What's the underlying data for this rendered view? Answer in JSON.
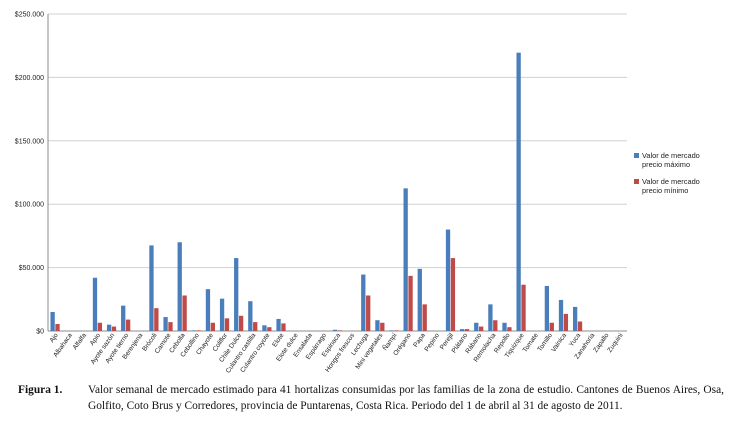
{
  "chart_data": {
    "type": "bar",
    "title": "",
    "xlabel": "",
    "ylabel": "",
    "ylim": [
      0,
      250000
    ],
    "yticks": [
      0,
      50000,
      100000,
      150000,
      200000,
      250000
    ],
    "ytick_labels": [
      "$0",
      "$50.000",
      "$100.000",
      "$150.000",
      "$200.000",
      "$250.000"
    ],
    "grid": "horizontal",
    "legend_position": "right",
    "categories": [
      "Ajo",
      "Albahaca",
      "Alfalfa",
      "Apio",
      "Ayote sazón",
      "Ayote tierno",
      "Berenjena",
      "Brócoli",
      "Camote",
      "Cebolla",
      "Cebollino",
      "Chayote",
      "Coliflor",
      "Chile Dulce",
      "Culantro castilla",
      "Culantro coyote",
      "Elote",
      "Elote dulce",
      "Ensalada",
      "Espárrago",
      "Espinaca",
      "Hongos frescos",
      "Lechuga",
      "Mini vegetales",
      "Ñampí",
      "Orégano",
      "Papa",
      "Pepino",
      "Perejil",
      "Plátano",
      "Rábano",
      "Remolacha",
      "Repollo",
      "Tiquizque",
      "Tomate",
      "Tomillo",
      "Vainica",
      "Yuca",
      "Zanahoria",
      "Zapallo",
      "Zuquini"
    ],
    "series": [
      {
        "name": "Valor de mercado precio máximo",
        "color": "#4a7ebb",
        "values": [
          15000,
          0,
          0,
          42000,
          5000,
          20000,
          0,
          67500,
          11000,
          70000,
          500,
          33000,
          25500,
          57500,
          23500,
          4500,
          9500,
          0,
          0,
          0,
          1000,
          0,
          44500,
          8500,
          500,
          112500,
          49000,
          0,
          80000,
          1500,
          6500,
          21000,
          6500,
          219500,
          0,
          35500,
          24500,
          19000,
          0,
          0,
          0
        ]
      },
      {
        "name": "Valor de mercado precio mínimo",
        "color": "#be4b48",
        "values": [
          5500,
          0,
          0,
          6500,
          3500,
          9000,
          0,
          18000,
          7000,
          28000,
          500,
          6500,
          10000,
          12000,
          7000,
          3000,
          6000,
          0,
          0,
          0,
          500,
          0,
          28000,
          6500,
          500,
          43500,
          21000,
          0,
          57500,
          1500,
          3500,
          8500,
          3000,
          36500,
          0,
          6500,
          13500,
          7500,
          0,
          0,
          0
        ]
      }
    ]
  },
  "caption": {
    "label": "Figura 1.",
    "text": "Valor semanal de mercado estimado para 41 hortalizas consumidas por las familias de la zona de estudio. Cantones de Buenos Aires, Osa, Golfito, Coto Brus y Corredores, provincia de Puntarenas, Costa Rica. Periodo del 1 de abril al 31 de agosto de 2011."
  }
}
